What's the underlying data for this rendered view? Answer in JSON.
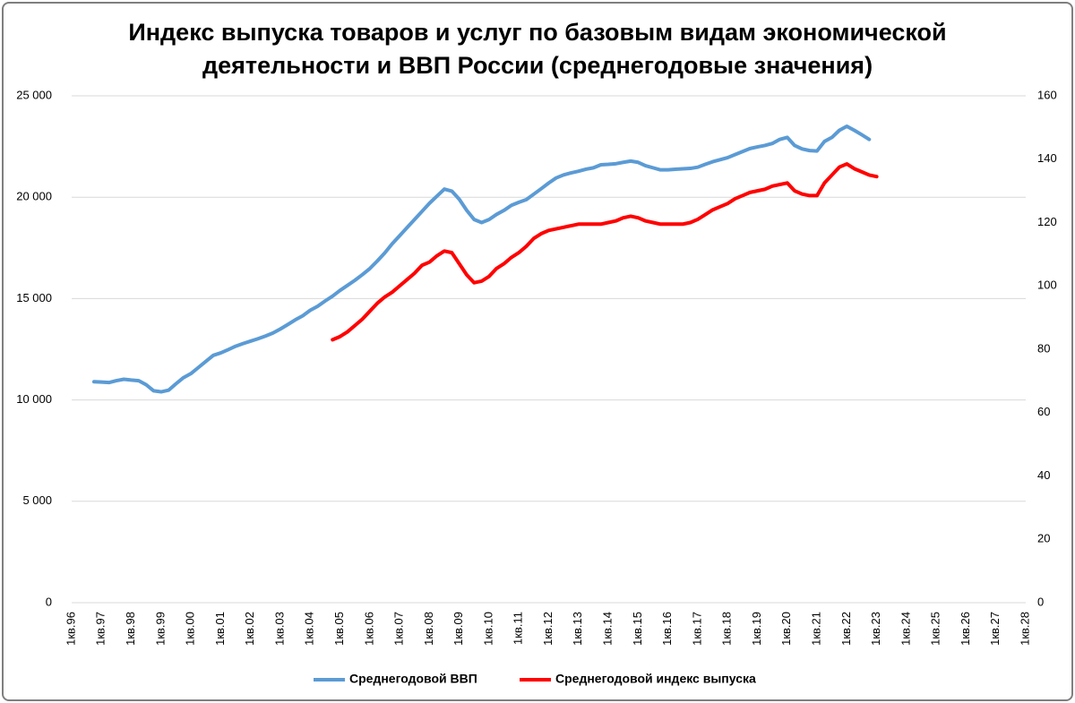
{
  "chart_data": {
    "type": "line",
    "title": "Индекс выпуска товаров и услуг по базовым видам экономической\nдеятельности и ВВП России (среднегодовые значения)",
    "categories": [
      "1кв.96",
      null,
      null,
      null,
      "1кв.97",
      null,
      null,
      null,
      "1кв.98",
      null,
      null,
      null,
      "1кв.99",
      null,
      null,
      null,
      "1кв.00",
      null,
      null,
      null,
      "1кв.01",
      null,
      null,
      null,
      "1кв.02",
      null,
      null,
      null,
      "1кв.03",
      null,
      null,
      null,
      "1кв.04",
      null,
      null,
      null,
      "1кв.05",
      null,
      null,
      null,
      "1кв.06",
      null,
      null,
      null,
      "1кв.07",
      null,
      null,
      null,
      "1кв.08",
      null,
      null,
      null,
      "1кв.09",
      null,
      null,
      null,
      "1кв.10",
      null,
      null,
      null,
      "1кв.11",
      null,
      null,
      null,
      "1кв.12",
      null,
      null,
      null,
      "1кв.13",
      null,
      null,
      null,
      "1кв.14",
      null,
      null,
      null,
      "1кв.15",
      null,
      null,
      null,
      "1кв.16",
      null,
      null,
      null,
      "1кв.17",
      null,
      null,
      null,
      "1кв.18",
      null,
      null,
      null,
      "1кв.19",
      null,
      null,
      null,
      "1кв.20",
      null,
      null,
      null,
      "1кв.21",
      null,
      null,
      null,
      "1кв.22",
      null,
      null,
      null,
      "1кв.23",
      null,
      null,
      null,
      "1кв.24",
      null,
      null,
      null,
      "1кв.25",
      null,
      null,
      null,
      "1кв.26",
      null,
      null,
      null,
      "1кв.27",
      null,
      null,
      null,
      "1кв.28"
    ],
    "series": [
      {
        "name": "Среднегодовой ВВП",
        "color": "#5b9bd5",
        "axis": "y",
        "values": [
          null,
          null,
          null,
          10900,
          10880,
          10860,
          10950,
          11020,
          10980,
          10950,
          10750,
          10450,
          10400,
          10480,
          10800,
          11100,
          11300,
          11600,
          11900,
          12200,
          12320,
          12480,
          12650,
          12780,
          12900,
          13020,
          13150,
          13300,
          13500,
          13720,
          13950,
          14150,
          14420,
          14620,
          14880,
          15120,
          15400,
          15650,
          15900,
          16180,
          16480,
          16850,
          17250,
          17700,
          18100,
          18500,
          18900,
          19300,
          19700,
          20050,
          20400,
          20300,
          19900,
          19350,
          18900,
          18750,
          18900,
          19150,
          19350,
          19600,
          19750,
          19880,
          20150,
          20420,
          20700,
          20950,
          21100,
          21200,
          21280,
          21380,
          21450,
          21600,
          21620,
          21650,
          21720,
          21780,
          21720,
          21550,
          21450,
          21350,
          21350,
          21380,
          21400,
          21420,
          21480,
          21620,
          21750,
          21850,
          21950,
          22100,
          22250,
          22400,
          22480,
          22550,
          22650,
          22850,
          22950,
          22550,
          22380,
          22300,
          22280,
          22750,
          22950,
          23300,
          23500,
          23300,
          23080,
          22850,
          null,
          null,
          null,
          null,
          null,
          null,
          null,
          null,
          null,
          null,
          null,
          null,
          null,
          null,
          null,
          null,
          null,
          null,
          null,
          null,
          null
        ]
      },
      {
        "name": "Среднегодовой индекс выпуска",
        "color": "#ff0000",
        "axis": "y2",
        "values": [
          null,
          null,
          null,
          null,
          null,
          null,
          null,
          null,
          null,
          null,
          null,
          null,
          null,
          null,
          null,
          null,
          null,
          null,
          null,
          null,
          null,
          null,
          null,
          null,
          null,
          null,
          null,
          null,
          null,
          null,
          null,
          null,
          null,
          null,
          null,
          83,
          84,
          85.5,
          87.5,
          89.5,
          92,
          94.5,
          96.5,
          98,
          100,
          102,
          104,
          106.5,
          107.5,
          109.5,
          111,
          110.5,
          107,
          103.5,
          101,
          101.5,
          103,
          105.5,
          107,
          109,
          110.5,
          112.5,
          115,
          116.5,
          117.5,
          118,
          118.5,
          119,
          119.5,
          119.5,
          119.5,
          119.5,
          120,
          120.5,
          121.5,
          122,
          121.5,
          120.5,
          120,
          119.5,
          119.5,
          119.5,
          119.5,
          120,
          121,
          122.5,
          124,
          125,
          126,
          127.5,
          128.5,
          129.5,
          130,
          130.5,
          131.5,
          132,
          132.5,
          130,
          129,
          128.5,
          128.5,
          132.5,
          135,
          137.5,
          138.5,
          137,
          136,
          135,
          134.5,
          null,
          null,
          null,
          null,
          null,
          null,
          null,
          null,
          null,
          null,
          null,
          null,
          null,
          null,
          null,
          null,
          null,
          null,
          null,
          null
        ]
      }
    ],
    "ylim": [
      0,
      25000
    ],
    "yticks": [
      0,
      {
        "value": 5000,
        "label": "5 000"
      },
      {
        "value": 10000,
        "label": "10 000"
      },
      {
        "value": 15000,
        "label": "15 000"
      },
      {
        "value": 20000,
        "label": "20 000"
      },
      {
        "value": 25000,
        "label": "25 000"
      }
    ],
    "y2lim": [
      0,
      160
    ],
    "y2ticks": [
      0,
      20,
      40,
      60,
      80,
      100,
      120,
      140,
      160
    ],
    "grid": true,
    "legend": "bottom"
  }
}
